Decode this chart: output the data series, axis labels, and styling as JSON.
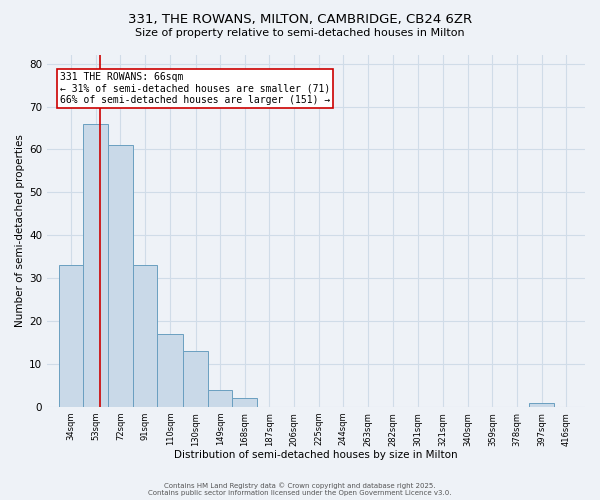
{
  "title_line1": "331, THE ROWANS, MILTON, CAMBRIDGE, CB24 6ZR",
  "title_line2": "Size of property relative to semi-detached houses in Milton",
  "xlabel": "Distribution of semi-detached houses by size in Milton",
  "ylabel": "Number of semi-detached properties",
  "bar_left_edges": [
    34,
    53,
    72,
    91,
    110,
    130,
    149,
    168,
    187,
    206,
    225,
    244,
    263,
    282,
    301,
    321,
    340,
    359,
    378,
    397,
    416
  ],
  "bar_widths": [
    19,
    19,
    19,
    19,
    20,
    19,
    19,
    19,
    19,
    19,
    19,
    19,
    19,
    19,
    20,
    19,
    19,
    19,
    19,
    19,
    19
  ],
  "bar_heights": [
    33,
    66,
    61,
    33,
    17,
    13,
    4,
    2,
    0,
    0,
    0,
    0,
    0,
    0,
    0,
    0,
    0,
    0,
    0,
    1,
    0
  ],
  "bar_color": "#c9d9e8",
  "bar_edge_color": "#6a9fc0",
  "property_size": 66,
  "property_line_color": "#cc0000",
  "annotation_text": "331 THE ROWANS: 66sqm\n← 31% of semi-detached houses are smaller (71)\n66% of semi-detached houses are larger (151) →",
  "annotation_box_color": "#ffffff",
  "annotation_border_color": "#cc0000",
  "ylim": [
    0,
    82
  ],
  "yticks": [
    0,
    10,
    20,
    30,
    40,
    50,
    60,
    70,
    80
  ],
  "xlim_left": 25,
  "xlim_right": 440,
  "grid_color": "#d0dce8",
  "background_color": "#eef2f7",
  "footer_line1": "Contains HM Land Registry data © Crown copyright and database right 2025.",
  "footer_line2": "Contains public sector information licensed under the Open Government Licence v3.0.",
  "title1_fontsize": 9.5,
  "title2_fontsize": 8,
  "xlabel_fontsize": 7.5,
  "ylabel_fontsize": 7.5,
  "xtick_fontsize": 6,
  "ytick_fontsize": 7.5,
  "ann_fontsize": 7,
  "footer_fontsize": 5
}
